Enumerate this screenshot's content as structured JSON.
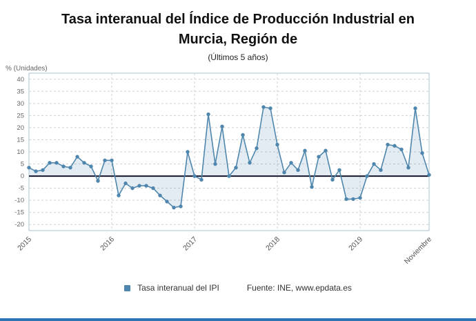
{
  "header": {
    "title_line1": "Tasa interanual del Índice de Producción Industrial en",
    "title_line2": "Murcia, Región de",
    "subtitle": "(Últimos 5 años)"
  },
  "legend": {
    "series_label": "Tasa interanual del IPI",
    "source": "Fuente: INE, www.epdata.es"
  },
  "chart_data": {
    "type": "area",
    "title": "Tasa interanual del Índice de Producción Industrial en Murcia, Región de",
    "subtitle": "(Últimos 5 años)",
    "ylabel": "% (Unidades)",
    "xlabel": "",
    "ylim": [
      -20,
      40
    ],
    "y_ticks": [
      40,
      35,
      30,
      25,
      20,
      15,
      10,
      5,
      0,
      -5,
      -10,
      -15,
      -20
    ],
    "grid": "dashed",
    "legend_position": "bottom",
    "series_name": "Tasa interanual del IPI",
    "x_ticks": [
      {
        "label": "2015",
        "index": 0
      },
      {
        "label": "2016",
        "index": 12
      },
      {
        "label": "2017",
        "index": 24
      },
      {
        "label": "2018",
        "index": 36
      },
      {
        "label": "2019",
        "index": 48
      },
      {
        "label": "Noviembre",
        "index": 58
      }
    ],
    "values": [
      3.5,
      2,
      2.5,
      5.5,
      5.5,
      4,
      3.5,
      8,
      5.5,
      4,
      -2,
      6.5,
      6.5,
      -8,
      -3,
      -5,
      -4,
      -4,
      -5,
      -8,
      -10.5,
      -13,
      -12.5,
      10,
      0,
      -1.5,
      25.5,
      5,
      20.5,
      0,
      3.5,
      17,
      5.5,
      11.5,
      28.5,
      28,
      13,
      1.5,
      5.5,
      2.5,
      10.5,
      -4.5,
      8,
      10.5,
      -1.5,
      2.5,
      -9.5,
      -9.5,
      -9,
      0,
      5,
      2.5,
      13,
      12.5,
      11,
      3.5,
      28,
      9.5,
      0.5
    ],
    "colors": {
      "line": "#4e86ad",
      "fill_opacity": 0.16,
      "zero_line": "#14142b",
      "grid_line": "#d0d0d0",
      "plot_border": "#aac6da",
      "tick_text": "#666666",
      "accent_bar": "#2d74b5"
    }
  }
}
